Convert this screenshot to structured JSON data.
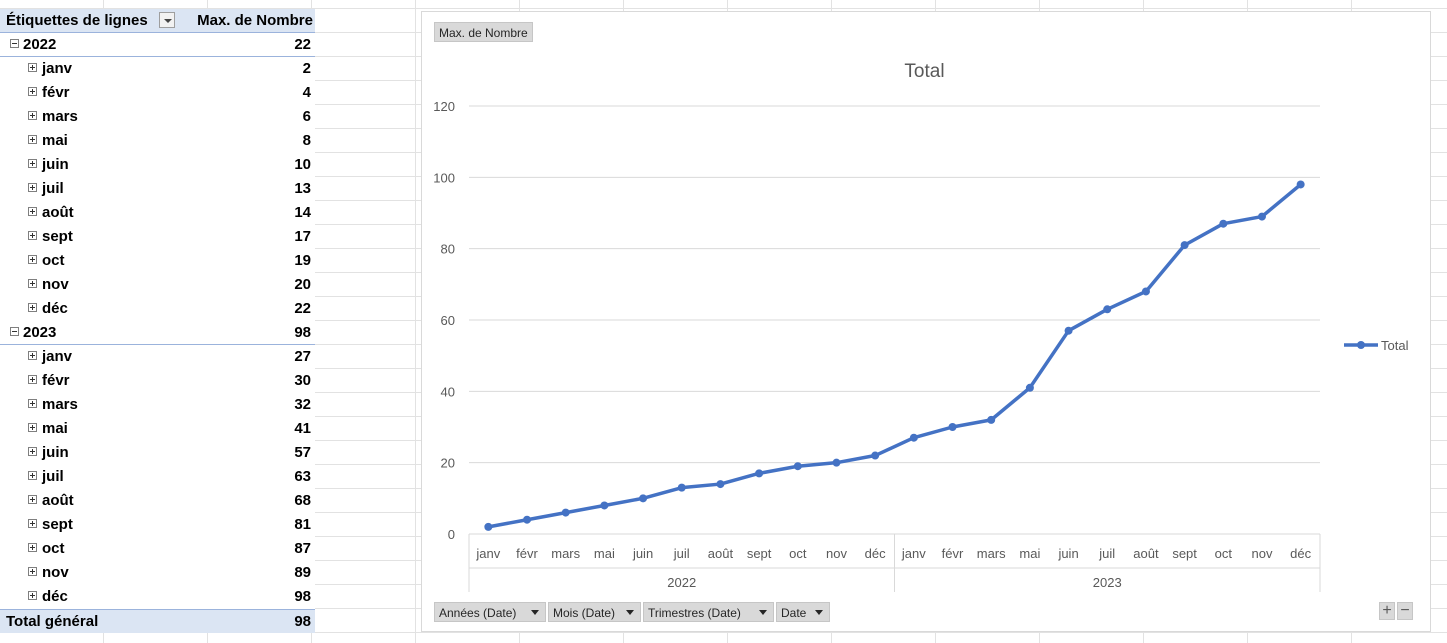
{
  "pivot": {
    "header": {
      "row_label": "Étiquettes de lignes",
      "value_label": "Max. de Nombre"
    },
    "years": [
      {
        "year": "2022",
        "max": "22",
        "months": [
          {
            "m": "janv",
            "v": "2"
          },
          {
            "m": "févr",
            "v": "4"
          },
          {
            "m": "mars",
            "v": "6"
          },
          {
            "m": "mai",
            "v": "8"
          },
          {
            "m": "juin",
            "v": "10"
          },
          {
            "m": "juil",
            "v": "13"
          },
          {
            "m": "août",
            "v": "14"
          },
          {
            "m": "sept",
            "v": "17"
          },
          {
            "m": "oct",
            "v": "19"
          },
          {
            "m": "nov",
            "v": "20"
          },
          {
            "m": "déc",
            "v": "22"
          }
        ]
      },
      {
        "year": "2023",
        "max": "98",
        "months": [
          {
            "m": "janv",
            "v": "27"
          },
          {
            "m": "févr",
            "v": "30"
          },
          {
            "m": "mars",
            "v": "32"
          },
          {
            "m": "mai",
            "v": "41"
          },
          {
            "m": "juin",
            "v": "57"
          },
          {
            "m": "juil",
            "v": "63"
          },
          {
            "m": "août",
            "v": "68"
          },
          {
            "m": "sept",
            "v": "81"
          },
          {
            "m": "oct",
            "v": "87"
          },
          {
            "m": "nov",
            "v": "89"
          },
          {
            "m": "déc",
            "v": "98"
          }
        ]
      }
    ],
    "total": {
      "label": "Total général",
      "value": "98"
    }
  },
  "chart_panel": {
    "value_field_button": "Max. de Nombre",
    "axis_field_buttons": [
      "Années (Date)",
      "Mois (Date)",
      "Trimestres (Date)",
      "Date"
    ],
    "zoom_in": "+",
    "zoom_out": "−"
  },
  "chart_data": {
    "type": "line",
    "title": "Total",
    "xlabel": "",
    "ylabel": "",
    "ylim": [
      0,
      120
    ],
    "yticks": [
      0,
      20,
      40,
      60,
      80,
      100,
      120
    ],
    "categories": [
      "janv",
      "févr",
      "mars",
      "mai",
      "juin",
      "juil",
      "août",
      "sept",
      "oct",
      "nov",
      "déc",
      "janv",
      "févr",
      "mars",
      "mai",
      "juin",
      "juil",
      "août",
      "sept",
      "oct",
      "nov",
      "déc"
    ],
    "category_groups": [
      {
        "label": "2022",
        "count": 11
      },
      {
        "label": "2023",
        "count": 11
      }
    ],
    "series": [
      {
        "name": "Total",
        "color": "#4472c4",
        "values": [
          2,
          4,
          6,
          8,
          10,
          13,
          14,
          17,
          19,
          20,
          22,
          27,
          30,
          32,
          41,
          57,
          63,
          68,
          81,
          87,
          89,
          98
        ]
      }
    ],
    "legend": "right",
    "grid": true
  }
}
